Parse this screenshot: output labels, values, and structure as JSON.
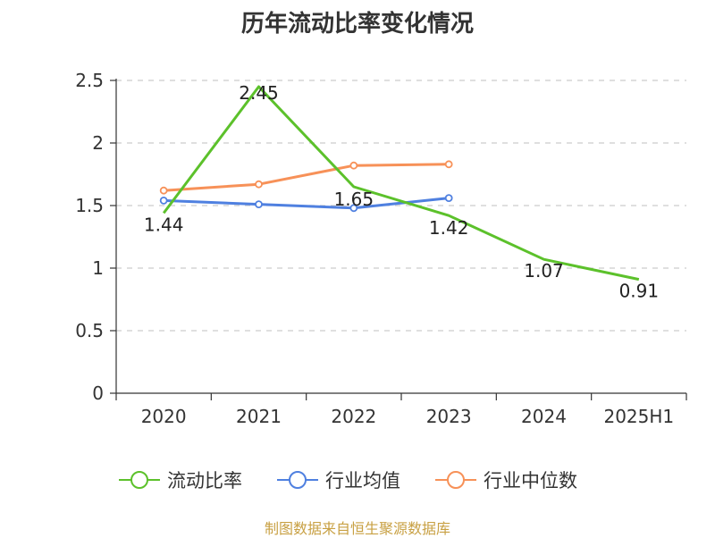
{
  "title": "历年流动比率变化情况",
  "source": "制图数据来自恒生聚源数据库",
  "chart_data": {
    "type": "line",
    "title": "历年流动比率变化情况",
    "categories": [
      "2020",
      "2021",
      "2022",
      "2023",
      "2024",
      "2025H1"
    ],
    "ylim": [
      0,
      2.5
    ],
    "yticks": [
      0,
      0.5,
      1,
      1.5,
      2,
      2.5
    ],
    "ytick_labels": [
      "0",
      "0.5",
      "1",
      "1.5",
      "2",
      "2.5"
    ],
    "grid": true,
    "legend_position": "bottom",
    "series": [
      {
        "name": "流动比率",
        "color": "#5cc12b",
        "values": [
          1.44,
          2.45,
          1.65,
          1.42,
          1.07,
          0.91
        ],
        "labels": [
          "1.44",
          "2.45",
          "1.65",
          "1.42",
          "1.07",
          "0.91"
        ],
        "markers": false
      },
      {
        "name": "行业均值",
        "color": "#4f80e0",
        "values": [
          1.54,
          1.51,
          1.48,
          1.56,
          null,
          null
        ],
        "markers": true
      },
      {
        "name": "行业中位数",
        "color": "#f79158",
        "values": [
          1.62,
          1.67,
          1.82,
          1.83,
          null,
          null
        ],
        "markers": true
      }
    ]
  }
}
